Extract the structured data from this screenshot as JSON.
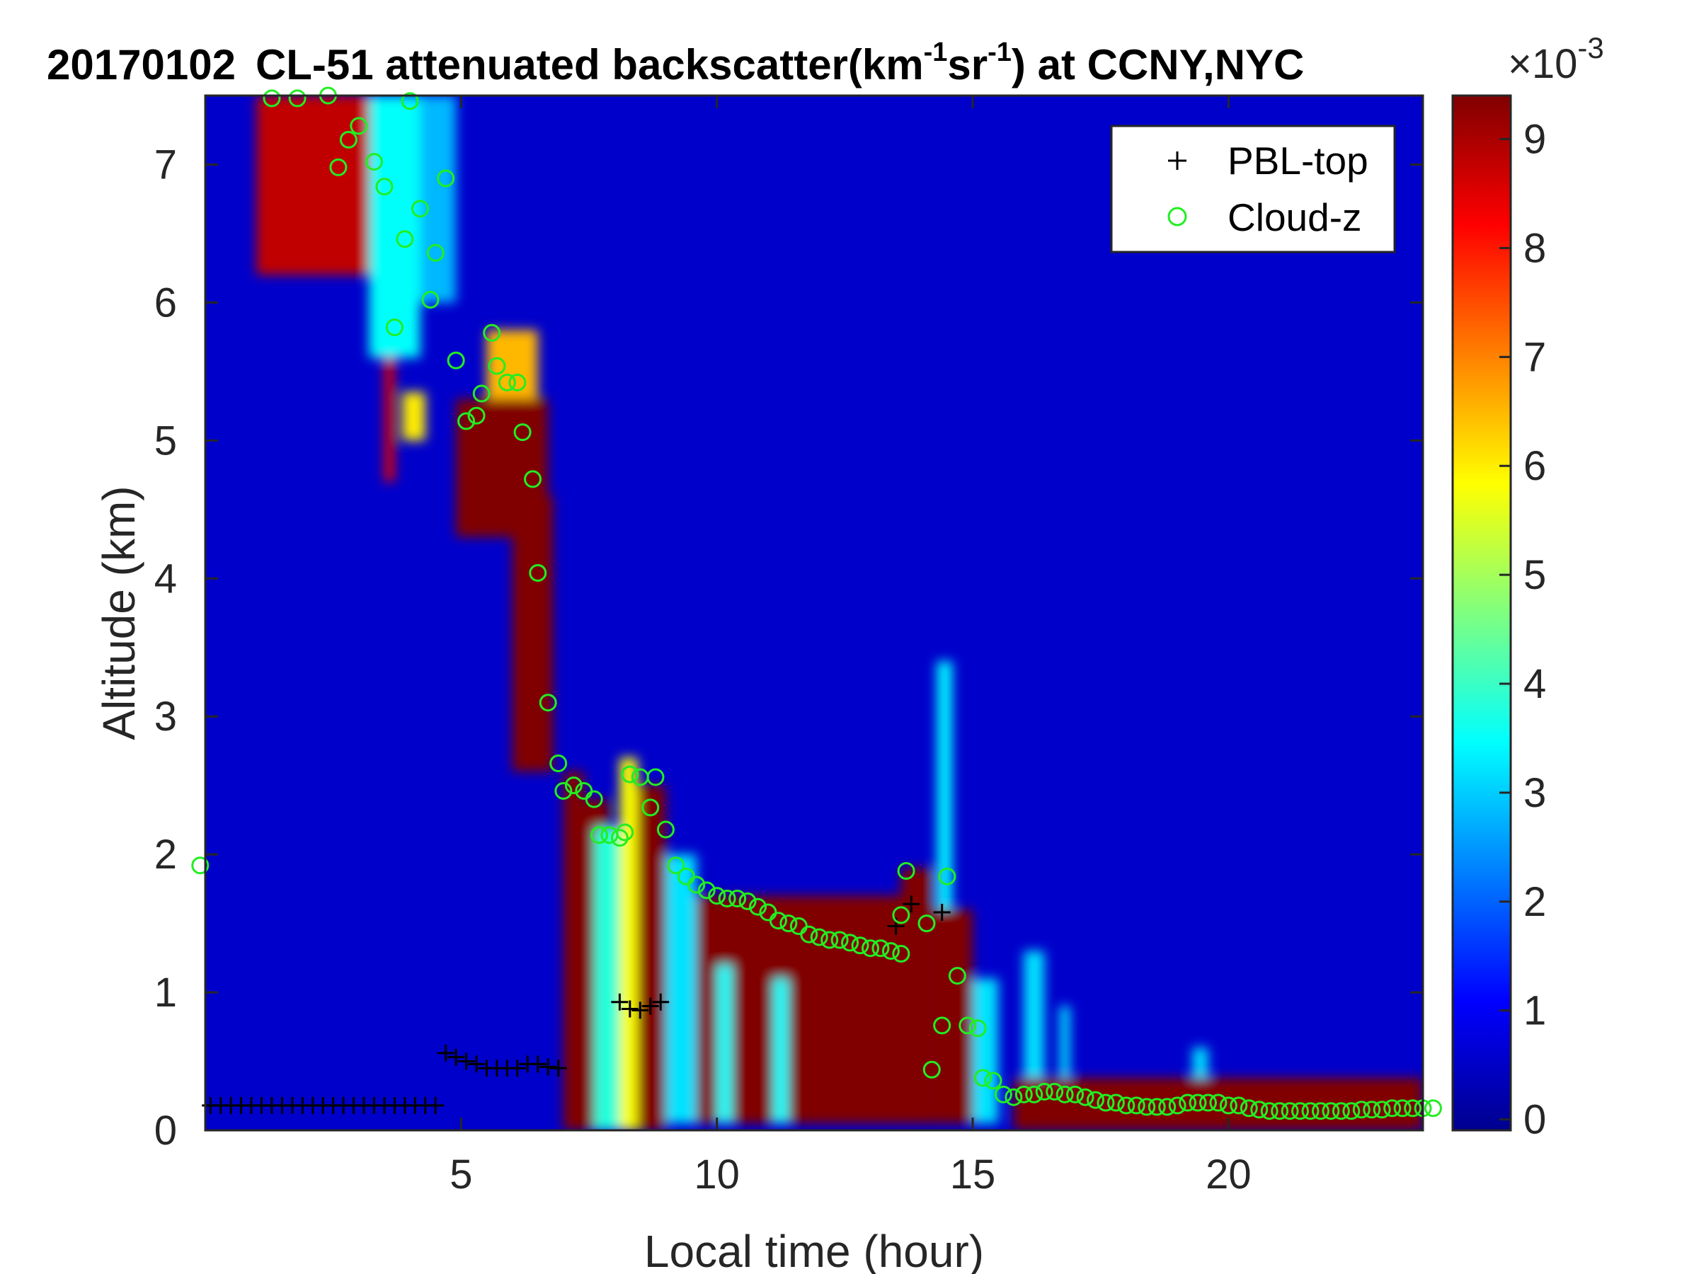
{
  "chart_data": {
    "type": "heatmap",
    "title": {
      "date": "20170102",
      "text": "CL-51 attenuated backscatter(km",
      "sup1": "-1",
      "mid": "sr",
      "sup2": "-1",
      "tail": ") at CCNY,NYC"
    },
    "xlabel": "Local time (hour)",
    "ylabel": "Altitude (km)",
    "xlim": [
      0,
      23.8
    ],
    "ylim": [
      0,
      7.5
    ],
    "xticks": [
      5,
      10,
      15,
      20
    ],
    "yticks": [
      0,
      1,
      2,
      3,
      4,
      5,
      6,
      7
    ],
    "colorbar": {
      "range": [
        -0.0001,
        0.0094
      ],
      "ticks": [
        0,
        1,
        2,
        3,
        4,
        5,
        6,
        7,
        8,
        9
      ],
      "multiplier_base": "×10",
      "multiplier_exp": "-3",
      "colormap": "jet"
    },
    "grid": false,
    "legend_position": "top-right",
    "legend": [
      {
        "name": "PBL-top",
        "marker": "+",
        "color": "#000000"
      },
      {
        "name": "Cloud-z",
        "marker": "o",
        "color": "#22ee22"
      }
    ],
    "series": [
      {
        "name": "PBL-top",
        "points": [
          [
            0.1,
            0.18
          ],
          [
            0.3,
            0.18
          ],
          [
            0.5,
            0.18
          ],
          [
            0.7,
            0.18
          ],
          [
            0.9,
            0.18
          ],
          [
            1.1,
            0.18
          ],
          [
            1.3,
            0.18
          ],
          [
            1.5,
            0.18
          ],
          [
            1.7,
            0.18
          ],
          [
            1.9,
            0.18
          ],
          [
            2.1,
            0.18
          ],
          [
            2.3,
            0.18
          ],
          [
            2.5,
            0.18
          ],
          [
            2.7,
            0.18
          ],
          [
            2.9,
            0.18
          ],
          [
            3.1,
            0.18
          ],
          [
            3.3,
            0.18
          ],
          [
            3.5,
            0.18
          ],
          [
            3.7,
            0.18
          ],
          [
            3.9,
            0.18
          ],
          [
            4.1,
            0.18
          ],
          [
            4.3,
            0.18
          ],
          [
            4.5,
            0.18
          ],
          [
            4.7,
            0.56
          ],
          [
            4.9,
            0.53
          ],
          [
            5.1,
            0.5
          ],
          [
            5.3,
            0.48
          ],
          [
            5.5,
            0.45
          ],
          [
            5.7,
            0.45
          ],
          [
            5.9,
            0.45
          ],
          [
            6.1,
            0.45
          ],
          [
            6.3,
            0.48
          ],
          [
            6.5,
            0.48
          ],
          [
            6.7,
            0.46
          ],
          [
            6.9,
            0.45
          ],
          [
            8.1,
            0.93
          ],
          [
            8.3,
            0.88
          ],
          [
            8.5,
            0.87
          ],
          [
            8.7,
            0.9
          ],
          [
            8.9,
            0.93
          ],
          [
            13.5,
            1.48
          ],
          [
            13.8,
            1.64
          ],
          [
            14.4,
            1.58
          ]
        ]
      },
      {
        "name": "Cloud-z",
        "points": [
          [
            -0.1,
            1.92
          ],
          [
            1.3,
            7.48
          ],
          [
            1.8,
            7.48
          ],
          [
            2.4,
            7.5
          ],
          [
            2.6,
            6.98
          ],
          [
            2.8,
            7.18
          ],
          [
            3.0,
            7.28
          ],
          [
            3.3,
            7.02
          ],
          [
            3.5,
            6.84
          ],
          [
            3.7,
            5.82
          ],
          [
            3.9,
            6.46
          ],
          [
            4.0,
            7.46
          ],
          [
            4.2,
            6.68
          ],
          [
            4.4,
            6.02
          ],
          [
            4.5,
            6.36
          ],
          [
            4.7,
            6.9
          ],
          [
            4.9,
            5.58
          ],
          [
            5.1,
            5.14
          ],
          [
            5.3,
            5.18
          ],
          [
            5.4,
            5.34
          ],
          [
            5.6,
            5.78
          ],
          [
            5.7,
            5.54
          ],
          [
            5.9,
            5.42
          ],
          [
            6.1,
            5.42
          ],
          [
            6.2,
            5.06
          ],
          [
            6.4,
            4.72
          ],
          [
            6.5,
            4.04
          ],
          [
            6.7,
            3.1
          ],
          [
            6.9,
            2.66
          ],
          [
            7.0,
            2.46
          ],
          [
            7.2,
            2.5
          ],
          [
            7.4,
            2.46
          ],
          [
            7.6,
            2.4
          ],
          [
            7.7,
            2.14
          ],
          [
            7.9,
            2.14
          ],
          [
            8.1,
            2.12
          ],
          [
            8.2,
            2.16
          ],
          [
            8.3,
            2.58
          ],
          [
            8.5,
            2.56
          ],
          [
            8.7,
            2.34
          ],
          [
            8.8,
            2.56
          ],
          [
            9.0,
            2.18
          ],
          [
            9.2,
            1.92
          ],
          [
            9.4,
            1.84
          ],
          [
            9.6,
            1.78
          ],
          [
            9.8,
            1.74
          ],
          [
            10.0,
            1.7
          ],
          [
            10.2,
            1.68
          ],
          [
            10.4,
            1.68
          ],
          [
            10.6,
            1.66
          ],
          [
            10.8,
            1.62
          ],
          [
            11.0,
            1.58
          ],
          [
            11.2,
            1.52
          ],
          [
            11.4,
            1.5
          ],
          [
            11.6,
            1.48
          ],
          [
            11.8,
            1.42
          ],
          [
            12.0,
            1.4
          ],
          [
            12.2,
            1.38
          ],
          [
            12.4,
            1.38
          ],
          [
            12.6,
            1.36
          ],
          [
            12.8,
            1.34
          ],
          [
            13.0,
            1.32
          ],
          [
            13.2,
            1.32
          ],
          [
            13.4,
            1.3
          ],
          [
            13.6,
            1.28
          ],
          [
            13.6,
            1.56
          ],
          [
            13.7,
            1.88
          ],
          [
            14.1,
            1.5
          ],
          [
            14.2,
            0.44
          ],
          [
            14.4,
            0.76
          ],
          [
            14.5,
            1.84
          ],
          [
            14.7,
            1.12
          ],
          [
            14.9,
            0.76
          ],
          [
            15.1,
            0.74
          ],
          [
            15.2,
            0.38
          ],
          [
            15.4,
            0.36
          ],
          [
            15.6,
            0.26
          ],
          [
            15.8,
            0.24
          ],
          [
            16.0,
            0.26
          ],
          [
            16.2,
            0.26
          ],
          [
            16.4,
            0.28
          ],
          [
            16.6,
            0.28
          ],
          [
            16.8,
            0.26
          ],
          [
            17.0,
            0.26
          ],
          [
            17.2,
            0.24
          ],
          [
            17.4,
            0.22
          ],
          [
            17.6,
            0.2
          ],
          [
            17.8,
            0.2
          ],
          [
            18.0,
            0.18
          ],
          [
            18.2,
            0.18
          ],
          [
            18.4,
            0.17
          ],
          [
            18.6,
            0.17
          ],
          [
            18.8,
            0.17
          ],
          [
            19.0,
            0.18
          ],
          [
            19.2,
            0.2
          ],
          [
            19.4,
            0.2
          ],
          [
            19.6,
            0.2
          ],
          [
            19.8,
            0.2
          ],
          [
            20.0,
            0.18
          ],
          [
            20.2,
            0.18
          ],
          [
            20.4,
            0.16
          ],
          [
            20.6,
            0.15
          ],
          [
            20.8,
            0.14
          ],
          [
            21.0,
            0.14
          ],
          [
            21.2,
            0.14
          ],
          [
            21.4,
            0.14
          ],
          [
            21.6,
            0.14
          ],
          [
            21.8,
            0.14
          ],
          [
            22.0,
            0.14
          ],
          [
            22.2,
            0.14
          ],
          [
            22.4,
            0.14
          ],
          [
            22.6,
            0.15
          ],
          [
            22.8,
            0.15
          ],
          [
            23.0,
            0.15
          ],
          [
            23.2,
            0.16
          ],
          [
            23.4,
            0.16
          ],
          [
            23.6,
            0.16
          ],
          [
            23.8,
            0.16
          ],
          [
            24.0,
            0.16
          ]
        ]
      }
    ],
    "backscatter_regions": {
      "background": 0.0006,
      "cells": [
        {
          "x0": 1.0,
          "x1": 3.6,
          "y0": 6.2,
          "y1": 7.5,
          "v": 0.0088
        },
        {
          "x0": 3.2,
          "x1": 4.2,
          "y0": 5.6,
          "y1": 7.5,
          "v": 0.0035
        },
        {
          "x0": 3.5,
          "x1": 3.7,
          "y0": 4.7,
          "y1": 5.6,
          "v": 0.0085
        },
        {
          "x0": 3.85,
          "x1": 4.3,
          "y0": 5.0,
          "y1": 5.35,
          "v": 0.006
        },
        {
          "x0": 4.2,
          "x1": 4.9,
          "y0": 6.0,
          "y1": 7.5,
          "v": 0.0028
        },
        {
          "x0": 5.5,
          "x1": 6.5,
          "y0": 5.0,
          "y1": 5.8,
          "v": 0.0065
        },
        {
          "x0": 4.9,
          "x1": 6.7,
          "y0": 4.3,
          "y1": 5.3,
          "v": 0.0094
        },
        {
          "x0": 6.0,
          "x1": 6.8,
          "y0": 2.6,
          "y1": 4.6,
          "v": 0.0094
        },
        {
          "x0": 7.0,
          "x1": 7.4,
          "y0": 0.0,
          "y1": 2.6,
          "v": 0.0094
        },
        {
          "x0": 7.4,
          "x1": 7.9,
          "y0": 0.0,
          "y1": 2.4,
          "v": 0.0094
        },
        {
          "x0": 7.6,
          "x1": 8.1,
          "y0": 0.0,
          "y1": 2.2,
          "v": 0.0038
        },
        {
          "x0": 8.1,
          "x1": 8.45,
          "y0": 0.0,
          "y1": 2.7,
          "v": 0.0058
        },
        {
          "x0": 8.45,
          "x1": 9.0,
          "y0": 0.0,
          "y1": 2.5,
          "v": 0.0094
        },
        {
          "x0": 9.0,
          "x1": 9.6,
          "y0": 0.05,
          "y1": 2.0,
          "v": 0.0032
        },
        {
          "x0": 9.6,
          "x1": 13.7,
          "y0": 0.05,
          "y1": 1.7,
          "v": 0.0094
        },
        {
          "x0": 10.0,
          "x1": 10.3,
          "y0": 0.05,
          "y1": 1.2,
          "v": 0.0035
        },
        {
          "x0": 11.1,
          "x1": 11.4,
          "y0": 0.05,
          "y1": 1.1,
          "v": 0.0035
        },
        {
          "x0": 13.6,
          "x1": 14.2,
          "y0": 0.05,
          "y1": 1.9,
          "v": 0.0094
        },
        {
          "x0": 14.3,
          "x1": 14.6,
          "y0": 1.0,
          "y1": 3.4,
          "v": 0.0034
        },
        {
          "x0": 14.2,
          "x1": 15.0,
          "y0": 0.05,
          "y1": 1.6,
          "v": 0.0094
        },
        {
          "x0": 15.0,
          "x1": 15.5,
          "y0": 0.05,
          "y1": 1.1,
          "v": 0.0032
        },
        {
          "x0": 15.8,
          "x1": 23.8,
          "y0": 0.0,
          "y1": 0.38,
          "v": 0.0094
        },
        {
          "x0": 16.0,
          "x1": 16.4,
          "y0": 0.38,
          "y1": 1.3,
          "v": 0.0032
        },
        {
          "x0": 16.7,
          "x1": 16.9,
          "y0": 0.38,
          "y1": 0.9,
          "v": 0.0032
        },
        {
          "x0": 19.3,
          "x1": 19.6,
          "y0": 0.38,
          "y1": 0.6,
          "v": 0.0032
        }
      ]
    }
  },
  "colors": {
    "pbl_marker": "#000000",
    "cloud_marker": "#22ee22",
    "background_field": "#0a22b0"
  }
}
